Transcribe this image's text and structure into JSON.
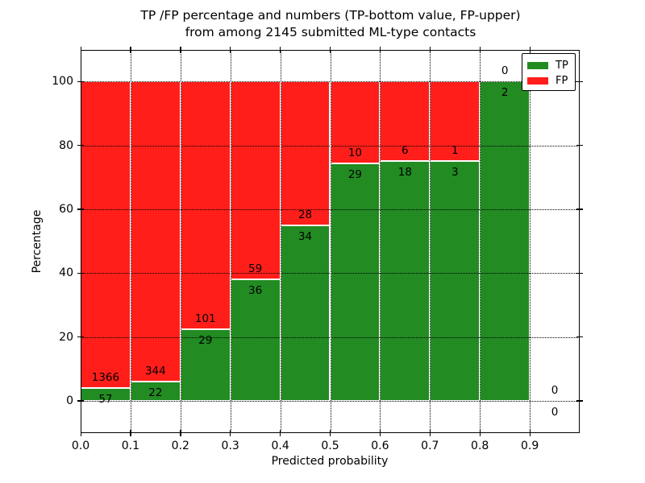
{
  "chart_data": {
    "type": "bar",
    "stacked": true,
    "title_lines": [
      "TP /FP percentage and numbers (TP-bottom value, FP-upper)",
      "from among 2145 submitted ML-type contacts"
    ],
    "xlabel": "Predicted probability",
    "ylabel": "Percentage",
    "xlim": [
      0.0,
      1.0
    ],
    "ylim": [
      -10,
      110
    ],
    "xticks": [
      "0.0",
      "0.1",
      "0.2",
      "0.3",
      "0.4",
      "0.5",
      "0.6",
      "0.7",
      "0.8",
      "0.9"
    ],
    "yticks": [
      0,
      20,
      40,
      60,
      80,
      100
    ],
    "grid": true,
    "total_contacts": 2145,
    "legend": {
      "position": "upper right",
      "entries": [
        {
          "label": "TP",
          "color": "#228b22"
        },
        {
          "label": "FP",
          "color": "#ff1e1a"
        }
      ]
    },
    "colors": {
      "tp": "#228b22",
      "fp": "#ff1e1a",
      "grid": "#000000",
      "bar_edge": "#ffffff"
    },
    "bins": [
      {
        "range": [
          0.0,
          0.1
        ],
        "tp": 57,
        "fp": 1366,
        "tp_pct": 4.0,
        "total_pct": 100
      },
      {
        "range": [
          0.1,
          0.2
        ],
        "tp": 22,
        "fp": 344,
        "tp_pct": 6.0,
        "total_pct": 100
      },
      {
        "range": [
          0.2,
          0.3
        ],
        "tp": 29,
        "fp": 101,
        "tp_pct": 22.3,
        "total_pct": 100
      },
      {
        "range": [
          0.3,
          0.4
        ],
        "tp": 36,
        "fp": 59,
        "tp_pct": 37.9,
        "total_pct": 100
      },
      {
        "range": [
          0.4,
          0.5
        ],
        "tp": 34,
        "fp": 28,
        "tp_pct": 54.8,
        "total_pct": 100
      },
      {
        "range": [
          0.5,
          0.6
        ],
        "tp": 29,
        "fp": 10,
        "tp_pct": 74.4,
        "total_pct": 100
      },
      {
        "range": [
          0.6,
          0.7
        ],
        "tp": 18,
        "fp": 6,
        "tp_pct": 75.0,
        "total_pct": 100
      },
      {
        "range": [
          0.7,
          0.8
        ],
        "tp": 3,
        "fp": 1,
        "tp_pct": 75.0,
        "total_pct": 100
      },
      {
        "range": [
          0.8,
          0.9
        ],
        "tp": 2,
        "fp": 0,
        "tp_pct": 100.0,
        "total_pct": 100
      },
      {
        "range": [
          0.9,
          1.0
        ],
        "tp": 0,
        "fp": 0,
        "tp_pct": 0.0,
        "total_pct": 0
      }
    ]
  }
}
